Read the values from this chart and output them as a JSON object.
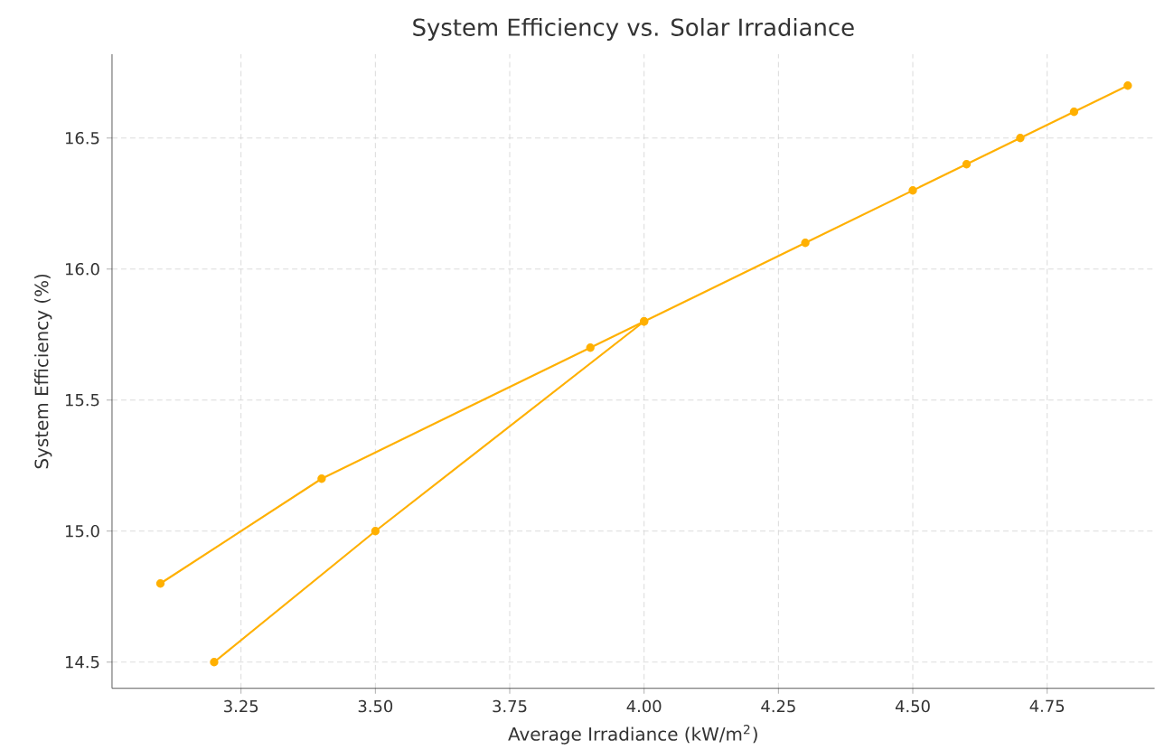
{
  "chart_data": {
    "type": "line",
    "title": "System Efficiency vs. Solar Irradiance",
    "xlabel": "Average Irradiance (kW/m$^{2}$)",
    "ylabel": "System Efficiency (%)",
    "series": [
      {
        "color": "#ffb000",
        "x": [
          3.1,
          3.4,
          3.9,
          4.0,
          4.3,
          4.5,
          4.6,
          4.7,
          4.8,
          4.9
        ],
        "values": [
          14.8,
          15.2,
          15.7,
          15.8,
          16.1,
          16.3,
          16.4,
          16.5,
          16.6,
          16.7
        ]
      },
      {
        "color": "#ffb000",
        "x": [
          3.2,
          3.5,
          4.0
        ],
        "values": [
          14.5,
          15.0,
          15.8
        ]
      }
    ],
    "xlim": [
      3.01,
      4.95
    ],
    "ylim": [
      14.4,
      16.82
    ],
    "xticks": [
      3.25,
      {
        "value": 3.5,
        "label": "3.50"
      },
      3.75,
      {
        "value": 4.0,
        "label": "4.00"
      },
      4.25,
      {
        "value": 4.5,
        "label": "4.50"
      },
      4.75
    ],
    "yticks": [
      14.5,
      {
        "value": 15.0,
        "label": "15.0"
      },
      15.5,
      {
        "value": 16.0,
        "label": "16.0"
      },
      16.5
    ],
    "grid": true,
    "marker": "circle",
    "line_style": "solid"
  }
}
